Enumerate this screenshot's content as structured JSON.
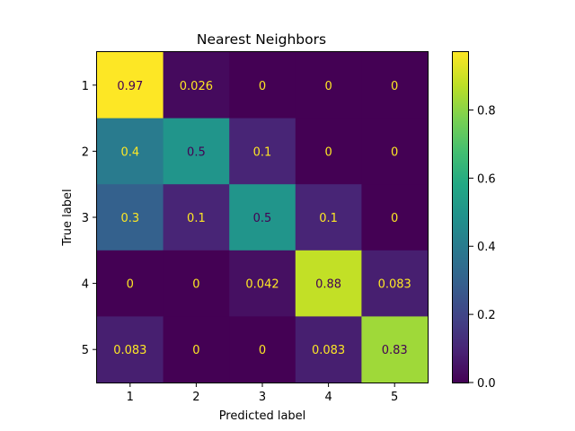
{
  "chart_data": {
    "type": "heatmap",
    "title": "Nearest Neighbors",
    "xlabel": "Predicted label",
    "ylabel": "True label",
    "x_categories": [
      "1",
      "2",
      "3",
      "4",
      "5"
    ],
    "y_categories": [
      "1",
      "2",
      "3",
      "4",
      "5"
    ],
    "values": [
      [
        0.97,
        0.026,
        0,
        0,
        0
      ],
      [
        0.4,
        0.5,
        0.1,
        0,
        0
      ],
      [
        0.3,
        0.1,
        0.5,
        0.1,
        0
      ],
      [
        0,
        0,
        0.042,
        0.88,
        0.083
      ],
      [
        0.083,
        0,
        0,
        0.083,
        0.83
      ]
    ],
    "labels": [
      [
        "0.97",
        "0.026",
        "0",
        "0",
        "0"
      ],
      [
        "0.4",
        "0.5",
        "0.1",
        "0",
        "0"
      ],
      [
        "0.3",
        "0.1",
        "0.5",
        "0.1",
        "0"
      ],
      [
        "0",
        "0",
        "0.042",
        "0.88",
        "0.083"
      ],
      [
        "0.083",
        "0",
        "0",
        "0.083",
        "0.83"
      ]
    ],
    "colormap": "viridis",
    "vmin": 0,
    "vmax": 0.97,
    "colorbar": {
      "ticks": [
        0.0,
        0.2,
        0.4,
        0.6,
        0.8
      ],
      "tick_labels": [
        "0.0",
        "0.2",
        "0.4",
        "0.6",
        "0.8"
      ]
    },
    "grid": false,
    "legend": "colorbar-right"
  }
}
